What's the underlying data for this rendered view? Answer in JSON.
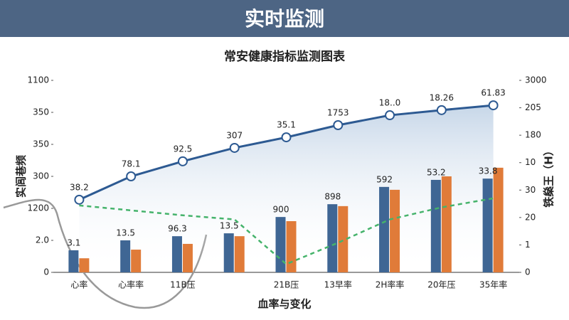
{
  "header": {
    "title": "实时监测"
  },
  "chart_data": {
    "type": "bar-line",
    "title": "常安健康指标监测图表",
    "x_label": "血率与变化",
    "y_label": "实闾巷频",
    "y2_label": "铁燊王（H）",
    "categories": [
      "心率",
      "心率率",
      "11B压",
      null,
      "21B压",
      "13早率",
      "2H率率",
      "20年压",
      "35年率"
    ],
    "series": [
      {
        "color": "#3f6694",
        "values": [
          0.69,
          1.0,
          1.13,
          1.22,
          1.73,
          2.13,
          2.67,
          2.89,
          2.93
        ]
      },
      {
        "color": "#e07b39",
        "values": [
          0.44,
          0.71,
          0.89,
          1.13,
          1.6,
          2.07,
          2.58,
          3.0,
          3.27
        ]
      }
    ],
    "lines": [
      {
        "color": "#2d5a92",
        "values": [
          2.27,
          3.0,
          3.47,
          3.89,
          4.22,
          4.6,
          4.91,
          5.07,
          5.22
        ]
      },
      {
        "color": "#45b36b",
        "axis": "y2",
        "values": [
          2.44,
          2.26,
          2.08,
          1.93,
          0.3,
          1.08,
          1.93,
          2.37,
          2.7
        ]
      }
    ],
    "line_labels": [
      "38.2",
      "78.1",
      "92.5",
      "307",
      "35.1",
      "1753",
      "18..0",
      "18.26",
      "61.83"
    ],
    "bar_labels": [
      "3.1",
      "13.5",
      "96.3",
      "13.5",
      "900",
      "898",
      "592",
      "53.2",
      "33.8"
    ],
    "ylim": [
      0,
      6
    ],
    "yticks": [
      0,
      {
        "value": 1,
        "label": "2.0"
      },
      {
        "value": 2,
        "label": "1200"
      },
      {
        "value": 3,
        "label": "300"
      },
      {
        "value": 4,
        "label": "350"
      },
      {
        "value": 5,
        "label": "350"
      },
      {
        "value": 6,
        "label": "1100"
      }
    ],
    "y2lim": [
      0,
      7
    ],
    "y2ticks": [
      0,
      {
        "value": 1,
        "label": "1"
      },
      {
        "value": 2,
        "label": "20"
      },
      {
        "value": 3,
        "label": "30"
      },
      {
        "value": 4,
        "label": "10"
      },
      {
        "value": 5,
        "label": "180"
      },
      {
        "value": 6,
        "label": "205"
      },
      {
        "value": 7,
        "label": "3000"
      }
    ]
  }
}
